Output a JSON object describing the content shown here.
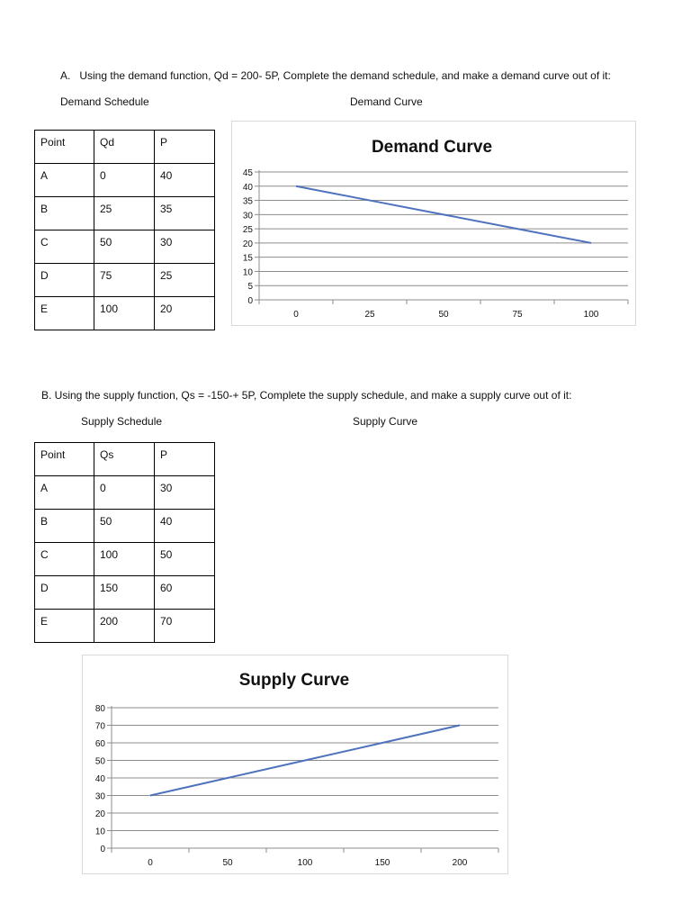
{
  "section_a": {
    "label": "A.",
    "prompt": "Using the demand function,  Qd = 200- 5P, Complete the demand schedule, and make a demand curve out of it:",
    "schedule_heading": "Demand Schedule",
    "curve_heading": "Demand Curve",
    "table": {
      "headers": [
        "Point",
        "Qd",
        "P"
      ],
      "rows": [
        [
          "A",
          "0",
          "40"
        ],
        [
          "B",
          "25",
          "35"
        ],
        [
          "C",
          "50",
          "30"
        ],
        [
          "D",
          "75",
          "25"
        ],
        [
          "E",
          "100",
          "20"
        ]
      ]
    }
  },
  "section_b": {
    "prompt": "B. Using the supply function,  Qs = -150-+ 5P, Complete the supply schedule, and make a supply  curve out of it:",
    "schedule_heading": "Supply Schedule",
    "curve_heading": "Supply Curve",
    "table": {
      "headers": [
        "Point",
        "Qs",
        "P"
      ],
      "rows": [
        [
          "A",
          "0",
          "30"
        ],
        [
          "B",
          "50",
          "40"
        ],
        [
          "C",
          "100",
          "50"
        ],
        [
          "D",
          "150",
          "60"
        ],
        [
          "E",
          "200",
          "70"
        ]
      ]
    }
  },
  "chart_data": [
    {
      "type": "line",
      "title": "Demand Curve",
      "categories": [
        "0",
        "25",
        "50",
        "75",
        "100"
      ],
      "series": [
        {
          "values": [
            40,
            35,
            30,
            25,
            20
          ]
        }
      ],
      "ylim": [
        0,
        45
      ],
      "yticks": [
        0,
        5,
        10,
        15,
        20,
        25,
        30,
        35,
        40,
        45
      ],
      "xlabel": "",
      "ylabel": "",
      "grid": true,
      "line_color": "#4f72bd"
    },
    {
      "type": "line",
      "title": "Supply Curve",
      "categories": [
        "0",
        "50",
        "100",
        "150",
        "200"
      ],
      "series": [
        {
          "values": [
            30,
            40,
            50,
            60,
            70
          ]
        }
      ],
      "ylim": [
        0,
        80
      ],
      "yticks": [
        0,
        10,
        20,
        30,
        40,
        50,
        60,
        70,
        80
      ],
      "xlabel": "",
      "ylabel": "",
      "grid": true,
      "line_color": "#4f72bd"
    }
  ]
}
